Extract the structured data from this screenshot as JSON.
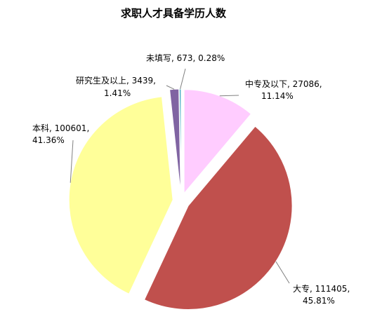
{
  "chart_data": {
    "type": "pie",
    "title": "求职人才具备学历人数",
    "slices": [
      {
        "label": "中专及以下",
        "value": 27086,
        "percent": "11.14%",
        "color": "#ffccff"
      },
      {
        "label": "大专",
        "value": 111405,
        "percent": "45.81%",
        "color": "#c0504d"
      },
      {
        "label": "本科",
        "value": 100601,
        "percent": "41.36%",
        "color": "#ffff99"
      },
      {
        "label": "研究生及以上",
        "value": 3439,
        "percent": "1.41%",
        "color": "#8064a2"
      },
      {
        "label": "未填写",
        "value": 673,
        "percent": "0.28%",
        "color": "#4bacc6"
      }
    ],
    "slice_labels": [
      {
        "line1": "中专及以下, 27086,",
        "line2": "11.14%"
      },
      {
        "line1": "大专, 111405,",
        "line2": "45.81%"
      },
      {
        "line1": "本科, 100601,",
        "line2": "41.36%"
      },
      {
        "line1": "研究生及以上, 3439,",
        "line2": "1.41%"
      },
      {
        "line1": "未填写, 673, 0.28%",
        "line2": ""
      }
    ],
    "exploded": true
  }
}
